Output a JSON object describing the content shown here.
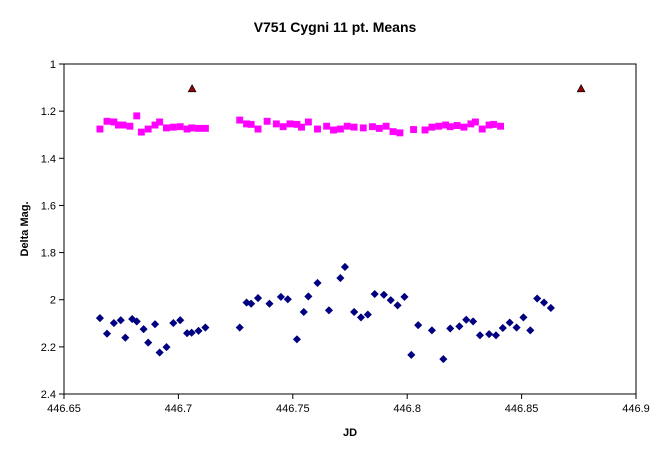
{
  "chart_data": {
    "type": "scatter",
    "title": "V751 Cygni 11 pt. Means",
    "xlabel": "JD",
    "ylabel": "Delta Mag.",
    "xlim": [
      446.65,
      446.9
    ],
    "ylim": [
      1,
      2.4
    ],
    "y_reversed": true,
    "x_ticks": [
      "446.65",
      "446.7",
      "446.75",
      "446.8",
      "446.85",
      "446.9"
    ],
    "x_tick_values": [
      446.65,
      446.7,
      446.75,
      446.8,
      446.85,
      446.9
    ],
    "y_ticks": [
      "1",
      "1.2",
      "1.4",
      "1.6",
      "1.8",
      "2",
      "2.2",
      "2.4"
    ],
    "y_tick_values": [
      1,
      1.2,
      1.4,
      1.6,
      1.8,
      2,
      2.2,
      2.4
    ],
    "grid": false,
    "legend": "none",
    "series": [
      {
        "marker": "square",
        "color": "#ff00ff",
        "points": [
          [
            446.6657,
            1.276
          ],
          [
            446.6688,
            1.243
          ],
          [
            446.6718,
            1.246
          ],
          [
            446.6738,
            1.259
          ],
          [
            446.6758,
            1.259
          ],
          [
            446.6788,
            1.264
          ],
          [
            446.6818,
            1.22
          ],
          [
            446.6838,
            1.289
          ],
          [
            446.6868,
            1.276
          ],
          [
            446.6898,
            1.259
          ],
          [
            446.6918,
            1.246
          ],
          [
            446.6948,
            1.271
          ],
          [
            446.6978,
            1.268
          ],
          [
            446.7008,
            1.266
          ],
          [
            446.7038,
            1.276
          ],
          [
            446.7058,
            1.271
          ],
          [
            446.7088,
            1.273
          ],
          [
            446.7118,
            1.273
          ],
          [
            446.7268,
            1.238
          ],
          [
            446.7298,
            1.254
          ],
          [
            446.7318,
            1.256
          ],
          [
            446.7348,
            1.276
          ],
          [
            446.7388,
            1.243
          ],
          [
            446.7428,
            1.254
          ],
          [
            446.7458,
            1.266
          ],
          [
            446.7488,
            1.254
          ],
          [
            446.7518,
            1.256
          ],
          [
            446.7538,
            1.268
          ],
          [
            446.7568,
            1.246
          ],
          [
            446.7608,
            1.276
          ],
          [
            446.7648,
            1.264
          ],
          [
            446.7678,
            1.28
          ],
          [
            446.7708,
            1.276
          ],
          [
            446.7738,
            1.264
          ],
          [
            446.7768,
            1.268
          ],
          [
            446.7808,
            1.271
          ],
          [
            446.7848,
            1.266
          ],
          [
            446.7878,
            1.273
          ],
          [
            446.7908,
            1.264
          ],
          [
            446.7938,
            1.287
          ],
          [
            446.7968,
            1.292
          ],
          [
            446.8028,
            1.278
          ],
          [
            446.8078,
            1.28
          ],
          [
            446.8108,
            1.268
          ],
          [
            446.8138,
            1.264
          ],
          [
            446.8168,
            1.259
          ],
          [
            446.8188,
            1.266
          ],
          [
            446.8218,
            1.261
          ],
          [
            446.8248,
            1.268
          ],
          [
            446.8278,
            1.254
          ],
          [
            446.8298,
            1.246
          ],
          [
            446.8328,
            1.276
          ],
          [
            446.8358,
            1.259
          ],
          [
            446.8378,
            1.256
          ],
          [
            446.8408,
            1.264
          ]
        ]
      },
      {
        "marker": "diamond",
        "color": "#000080",
        "points": [
          [
            446.6657,
            2.078
          ],
          [
            446.6688,
            2.144
          ],
          [
            446.6718,
            2.099
          ],
          [
            446.6748,
            2.087
          ],
          [
            446.6768,
            2.161
          ],
          [
            446.6798,
            2.082
          ],
          [
            446.6818,
            2.092
          ],
          [
            446.6848,
            2.125
          ],
          [
            446.6868,
            2.182
          ],
          [
            446.6898,
            2.104
          ],
          [
            446.6918,
            2.224
          ],
          [
            446.6948,
            2.201
          ],
          [
            446.6978,
            2.099
          ],
          [
            446.7008,
            2.087
          ],
          [
            446.7038,
            2.142
          ],
          [
            446.7058,
            2.14
          ],
          [
            446.7088,
            2.132
          ],
          [
            446.7118,
            2.118
          ],
          [
            446.7268,
            2.118
          ],
          [
            446.7298,
            2.012
          ],
          [
            446.7318,
            2.017
          ],
          [
            446.7348,
            1.993
          ],
          [
            446.7398,
            2.017
          ],
          [
            446.7448,
            1.988
          ],
          [
            446.7478,
            1.998
          ],
          [
            446.7518,
            2.168
          ],
          [
            446.7548,
            2.052
          ],
          [
            446.7568,
            1.986
          ],
          [
            446.7608,
            1.929
          ],
          [
            446.7658,
            2.045
          ],
          [
            446.7708,
            1.908
          ],
          [
            446.7728,
            1.861
          ],
          [
            446.7768,
            2.052
          ],
          [
            446.7798,
            2.075
          ],
          [
            446.7828,
            2.063
          ],
          [
            446.7858,
            1.976
          ],
          [
            446.7898,
            1.979
          ],
          [
            446.7928,
            2.002
          ],
          [
            446.7958,
            2.024
          ],
          [
            446.7988,
            1.988
          ],
          [
            446.8018,
            2.234
          ],
          [
            446.8048,
            2.108
          ],
          [
            446.8108,
            2.13
          ],
          [
            446.8158,
            2.252
          ],
          [
            446.8188,
            2.122
          ],
          [
            446.8228,
            2.113
          ],
          [
            446.8258,
            2.085
          ],
          [
            446.8288,
            2.092
          ],
          [
            446.8318,
            2.151
          ],
          [
            446.8358,
            2.146
          ],
          [
            446.8388,
            2.151
          ],
          [
            446.8418,
            2.12
          ],
          [
            446.8448,
            2.097
          ],
          [
            446.8478,
            2.118
          ],
          [
            446.8508,
            2.075
          ],
          [
            446.8538,
            2.13
          ],
          [
            446.8568,
            1.995
          ],
          [
            446.8598,
            2.012
          ],
          [
            446.8628,
            2.035
          ]
        ]
      },
      {
        "marker": "triangle",
        "color": "#990000",
        "points": [
          [
            446.706,
            1.105
          ],
          [
            446.876,
            1.105
          ]
        ]
      }
    ]
  }
}
